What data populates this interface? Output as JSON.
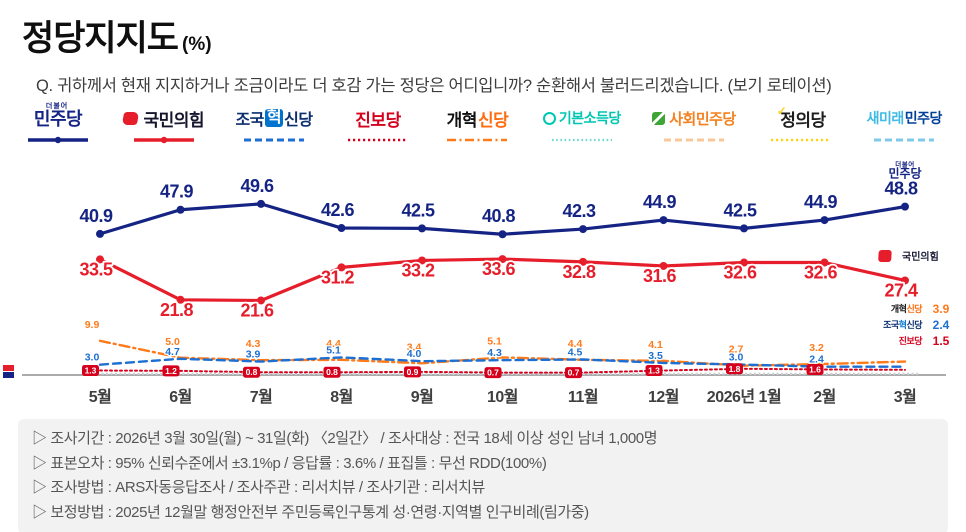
{
  "header": {
    "title": "정당지지도",
    "title_unit": "(%)",
    "question": "Q. 귀하께서 현재 지지하거나 조금이라도 더 호감 가는 정당은 어디입니까? 순환해서 불러드리겠습니다. (보기 로테이션)"
  },
  "legend": [
    {
      "id": "minjoo",
      "name": "더불어민주당",
      "prefix": "더불어",
      "prefix_color": "#152484",
      "size": 18,
      "parts": [
        {
          "t": "민주당",
          "c": "#152484"
        }
      ],
      "sample": {
        "color": "#152484",
        "style": "solid",
        "dot": true
      }
    },
    {
      "id": "ppp",
      "name": "국민의힘",
      "icon": "red-blob",
      "icon_color": "#E61E2B",
      "size": 17,
      "parts": [
        {
          "t": "국민의힘",
          "c": "#15152e"
        }
      ],
      "sample": {
        "color": "#E61E2B",
        "style": "solid",
        "dot": true
      }
    },
    {
      "id": "rebuilding",
      "name": "조국혁신당",
      "size": 16,
      "parts": [
        {
          "t": "조국",
          "c": "#0B2E6F"
        },
        {
          "t": "혁",
          "c": "#ffffff",
          "bg": "#0073CF"
        },
        {
          "t": "신당",
          "c": "#0B2E6F"
        }
      ],
      "sample": {
        "color": "#1D6FD1",
        "style": "dashed"
      }
    },
    {
      "id": "jinbo",
      "name": "진보당",
      "size": 17,
      "parts": [
        {
          "t": "진보당",
          "c": "#D6001C"
        }
      ],
      "sample": {
        "color": "#D6001C",
        "style": "dotted"
      }
    },
    {
      "id": "reform",
      "name": "개혁신당",
      "size": 17,
      "parts": [
        {
          "t": "개혁",
          "c": "#111111"
        },
        {
          "t": "신당",
          "c": "#FF6C0F"
        }
      ],
      "sample": {
        "color": "#FF7A1A",
        "style": "dashdot"
      }
    },
    {
      "id": "basic-income",
      "name": "기본소득당",
      "icon": "teal-ring",
      "size": 14,
      "parts": [
        {
          "t": "기본소득당",
          "c": "#00C7B3"
        }
      ],
      "sample": {
        "color": "#6FD9CE",
        "style": "finedot"
      }
    },
    {
      "id": "social-dem",
      "name": "사회민주당",
      "icon": "green-square",
      "size": 15,
      "parts": [
        {
          "t": "사회민주당",
          "c": "#F58220"
        }
      ],
      "sample": {
        "color": "#F9C89A",
        "style": "dashed"
      }
    },
    {
      "id": "justice",
      "name": "정의당",
      "icon": "check",
      "size": 17,
      "parts": [
        {
          "t": "정의당",
          "c": "#1d1d1d"
        }
      ],
      "sample": {
        "color": "#FFD21C",
        "style": "dotted"
      }
    },
    {
      "id": "new-future",
      "name": "새미래민주당",
      "size": 14,
      "parts": [
        {
          "t": "새미래",
          "c": "#3FB9E5"
        },
        {
          "t": "민주당",
          "c": "#004098"
        }
      ],
      "sample": {
        "color": "#7FC9EA",
        "style": "dashed"
      }
    }
  ],
  "chart_data": {
    "type": "line",
    "x": [
      "5월",
      "6월",
      "7월",
      "8월",
      "9월",
      "10월",
      "11월",
      "12월",
      "2026년 1월",
      "2월",
      "3월"
    ],
    "ylim": [
      0,
      55
    ],
    "grid": false,
    "series": [
      {
        "id": "minjoo",
        "name": "민주당",
        "color": "#152484",
        "style": "solid",
        "width": 3.2,
        "dot": true,
        "label": "above-big",
        "values": [
          40.9,
          47.9,
          49.6,
          42.6,
          42.5,
          40.8,
          42.3,
          44.9,
          42.5,
          44.9,
          48.8
        ],
        "name_parts": [
          [
            "민주당",
            "#152484"
          ]
        ]
      },
      {
        "id": "ppp",
        "name": "국민의힘",
        "color": "#E61E2B",
        "style": "solid",
        "width": 3.2,
        "dot": true,
        "label": "below-big",
        "values": [
          33.5,
          21.8,
          21.6,
          31.2,
          33.2,
          33.6,
          32.8,
          31.6,
          32.6,
          32.6,
          27.4
        ],
        "name_parts": [
          [
            "국민의힘",
            "#15152e"
          ]
        ]
      },
      {
        "id": "reform",
        "name": "개혁신당",
        "color": "#FF7A1A",
        "style": "dashdot",
        "width": 2.4,
        "label": "above-small",
        "skip_last_label": true,
        "values": [
          9.9,
          5.0,
          4.3,
          4.4,
          3.4,
          5.1,
          4.4,
          4.1,
          2.7,
          3.2,
          3.9
        ],
        "name_parts": [
          [
            "개혁",
            "#111111"
          ],
          [
            "신당",
            "#FF6C0F"
          ]
        ]
      },
      {
        "id": "rebuilding",
        "name": "조국혁신당",
        "color": "#1D6FD1",
        "style": "dashed",
        "width": 2.4,
        "label": "mid-small",
        "skip_last_label": true,
        "values": [
          3.0,
          4.7,
          3.9,
          5.1,
          4.0,
          4.3,
          4.5,
          3.5,
          3.0,
          2.4,
          2.4
        ],
        "name_parts": [
          [
            "조국",
            "#0B2E6F"
          ],
          [
            "혁",
            "#0073CF"
          ],
          [
            "신당",
            "#0B2E6F"
          ]
        ]
      },
      {
        "id": "jinbo",
        "name": "진보당",
        "color": "#D6001C",
        "style": "dotted",
        "width": 2,
        "label": "boxed",
        "skip_last_label": true,
        "values": [
          1.3,
          1.2,
          0.8,
          0.8,
          0.9,
          0.7,
          0.7,
          1.3,
          1.8,
          1.6,
          1.5
        ],
        "name_parts": [
          [
            "진보당",
            "#D6001C"
          ]
        ]
      }
    ],
    "minor_series": [
      {
        "id": "basic-income",
        "name": "기본소득당",
        "color": "#c2c9cc",
        "approx_value": 0.5
      },
      {
        "id": "social-dem",
        "name": "사회민주당",
        "color": "#ccc5bb",
        "approx_value": 0.35
      },
      {
        "id": "justice",
        "name": "정의당",
        "color": "#d2d2d2",
        "approx_value": 0.25
      },
      {
        "id": "new-future",
        "name": "새미래민주당",
        "color": "#c8d1d9",
        "approx_value": 0.15
      }
    ],
    "end_annotations": {
      "minjoo_tag": {
        "prefix": "더불어",
        "name": "민주당",
        "color": "#152484"
      },
      "ppp_tag": {
        "name": "국민의힘",
        "text_color": "#1c1c38",
        "blob_color": "#E61E2B"
      }
    }
  },
  "footer": {
    "lines": [
      "▷ 조사기간 : 2026년 3월 30일(월) ~ 31일(화) 〈2일간〉 / 조사대상 : 전국 18세 이상 성인 남녀 1,000명",
      "▷ 표본오차 : 95% 신뢰수준에서 ±3.1%p / 응답률 : 3.6% / 표집틀 : 무선 RDD(100%)",
      "▷ 조사방법 : ARS자동응답조사 / 조사주관 : 리서치뷰 / 조사기관 : 리서치뷰",
      "▷ 보정방법 : 2025년 12월말 행정안전부 주민등록인구통계 성·연령·지역별 인구비례(림가중)"
    ]
  }
}
